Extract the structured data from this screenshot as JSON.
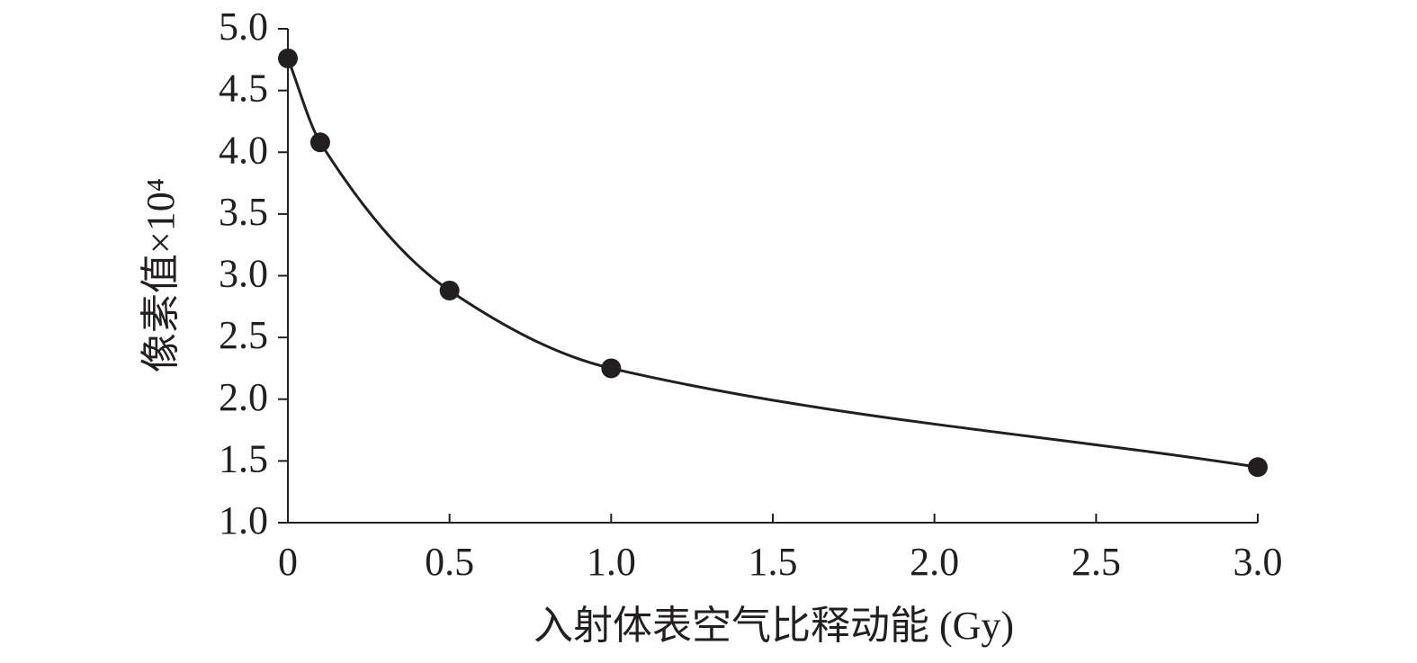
{
  "chart_data": {
    "type": "scatter",
    "x_label": "入射体表空气比释动能 (Gy)",
    "y_label": "像素值×10⁴",
    "x": [
      0,
      0.1,
      0.5,
      1.0,
      3.0
    ],
    "series": [
      {
        "color": "#231f20",
        "values": [
          4.76,
          4.08,
          2.88,
          2.25,
          1.45
        ]
      }
    ],
    "fit_curve": true,
    "xlim": [
      0,
      3
    ],
    "xticks": [
      0,
      0.5,
      {
        "value": 1,
        "label": "1.0"
      },
      1.5,
      {
        "value": 2,
        "label": "2.0"
      },
      2.5,
      {
        "value": 3,
        "label": "3.0"
      }
    ],
    "ylim": [
      1,
      5
    ],
    "yticks": [
      {
        "value": 1,
        "label": "1.0"
      },
      1.5,
      {
        "value": 2,
        "label": "2.0"
      },
      2.5,
      {
        "value": 3,
        "label": "3.0"
      },
      3.5,
      {
        "value": 4,
        "label": "4.0"
      },
      4.5,
      {
        "value": 5,
        "label": "5.0"
      }
    ]
  }
}
